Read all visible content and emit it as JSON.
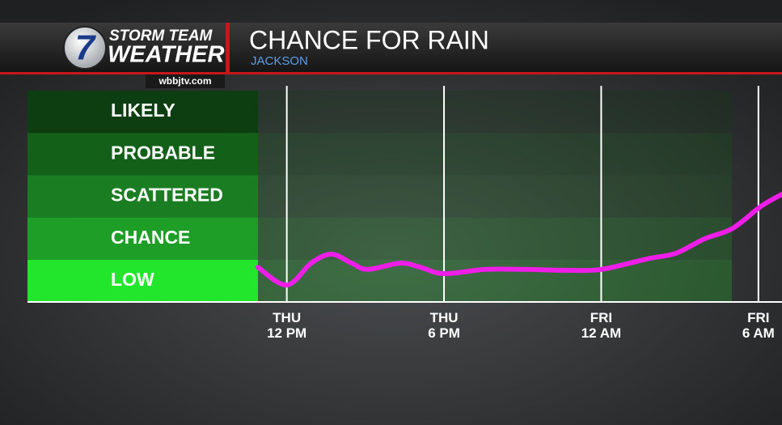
{
  "header": {
    "logo_number": "7",
    "brand_top": "STORM TEAM",
    "brand_bottom": "WEATHER",
    "website": "wbbjtv.com",
    "title": "CHANCE FOR RAIN",
    "subtitle": "JACKSON"
  },
  "chart_data": {
    "type": "line",
    "x": [
      -1.1,
      0,
      0.93,
      1.7,
      2.47,
      3.09,
      4.33,
      5.1,
      6,
      7.58,
      9.12,
      10.67,
      12,
      13.76,
      14.84,
      15.93,
      17.01,
      18.09,
      18.9
    ],
    "series": [
      {
        "color": "#ee1ee8",
        "values": [
          0.82,
          0.4,
          0.92,
          1.13,
          0.92,
          0.77,
          0.92,
          0.82,
          0.67,
          0.77,
          0.77,
          0.75,
          0.77,
          1.02,
          1.15,
          1.49,
          1.74,
          2.26,
          2.55
        ]
      }
    ],
    "xlim": [
      -1.1,
      18.9
    ],
    "xticks": [
      {
        "value": 0,
        "label": "THU\n12 PM"
      },
      {
        "value": 6,
        "label": "THU\n6 PM"
      },
      {
        "value": 12,
        "label": "FRI\n12 AM"
      },
      {
        "value": 18,
        "label": "FRI\n6 AM"
      }
    ],
    "ylim": [
      0,
      5
    ],
    "yticks": [
      {
        "value": 0.5,
        "label": "LOW"
      },
      {
        "value": 1.5,
        "label": "CHANCE"
      },
      {
        "value": 2.5,
        "label": "SCATTERED"
      },
      {
        "value": 3.5,
        "label": "PROBABLE"
      },
      {
        "value": 4.5,
        "label": "LIKELY"
      }
    ],
    "band_colors": [
      "#22e62b",
      "#1f9e27",
      "#1a7d22",
      "#136119",
      "#0c3e12"
    ],
    "grid": true
  }
}
